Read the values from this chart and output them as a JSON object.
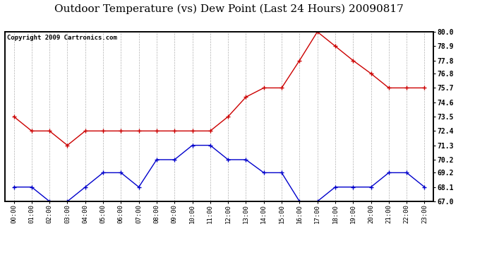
{
  "title": "Outdoor Temperature (vs) Dew Point (Last 24 Hours) 20090817",
  "copyright": "Copyright 2009 Cartronics.com",
  "hours": [
    "00:00",
    "01:00",
    "02:00",
    "03:00",
    "04:00",
    "05:00",
    "06:00",
    "07:00",
    "08:00",
    "09:00",
    "10:00",
    "11:00",
    "12:00",
    "13:00",
    "14:00",
    "15:00",
    "16:00",
    "17:00",
    "18:00",
    "19:00",
    "20:00",
    "21:00",
    "22:00",
    "23:00"
  ],
  "temp": [
    73.5,
    72.4,
    72.4,
    71.3,
    72.4,
    72.4,
    72.4,
    72.4,
    72.4,
    72.4,
    72.4,
    72.4,
    73.5,
    75.0,
    75.7,
    75.7,
    77.8,
    80.0,
    78.9,
    77.8,
    76.8,
    75.7,
    75.7,
    75.7
  ],
  "dew": [
    68.1,
    68.1,
    67.0,
    67.0,
    68.1,
    69.2,
    69.2,
    68.1,
    70.2,
    70.2,
    71.3,
    71.3,
    70.2,
    70.2,
    69.2,
    69.2,
    67.0,
    67.0,
    68.1,
    68.1,
    68.1,
    69.2,
    69.2,
    68.1
  ],
  "temp_color": "#cc0000",
  "dew_color": "#0000cc",
  "ylim_min": 67.0,
  "ylim_max": 80.0,
  "yticks": [
    67.0,
    68.1,
    69.2,
    70.2,
    71.3,
    72.4,
    73.5,
    74.6,
    75.7,
    76.8,
    77.8,
    78.9,
    80.0
  ],
  "background_color": "#ffffff",
  "plot_bg_color": "#ffffff",
  "grid_color": "#aaaaaa",
  "title_fontsize": 11,
  "copyright_fontsize": 6.5
}
